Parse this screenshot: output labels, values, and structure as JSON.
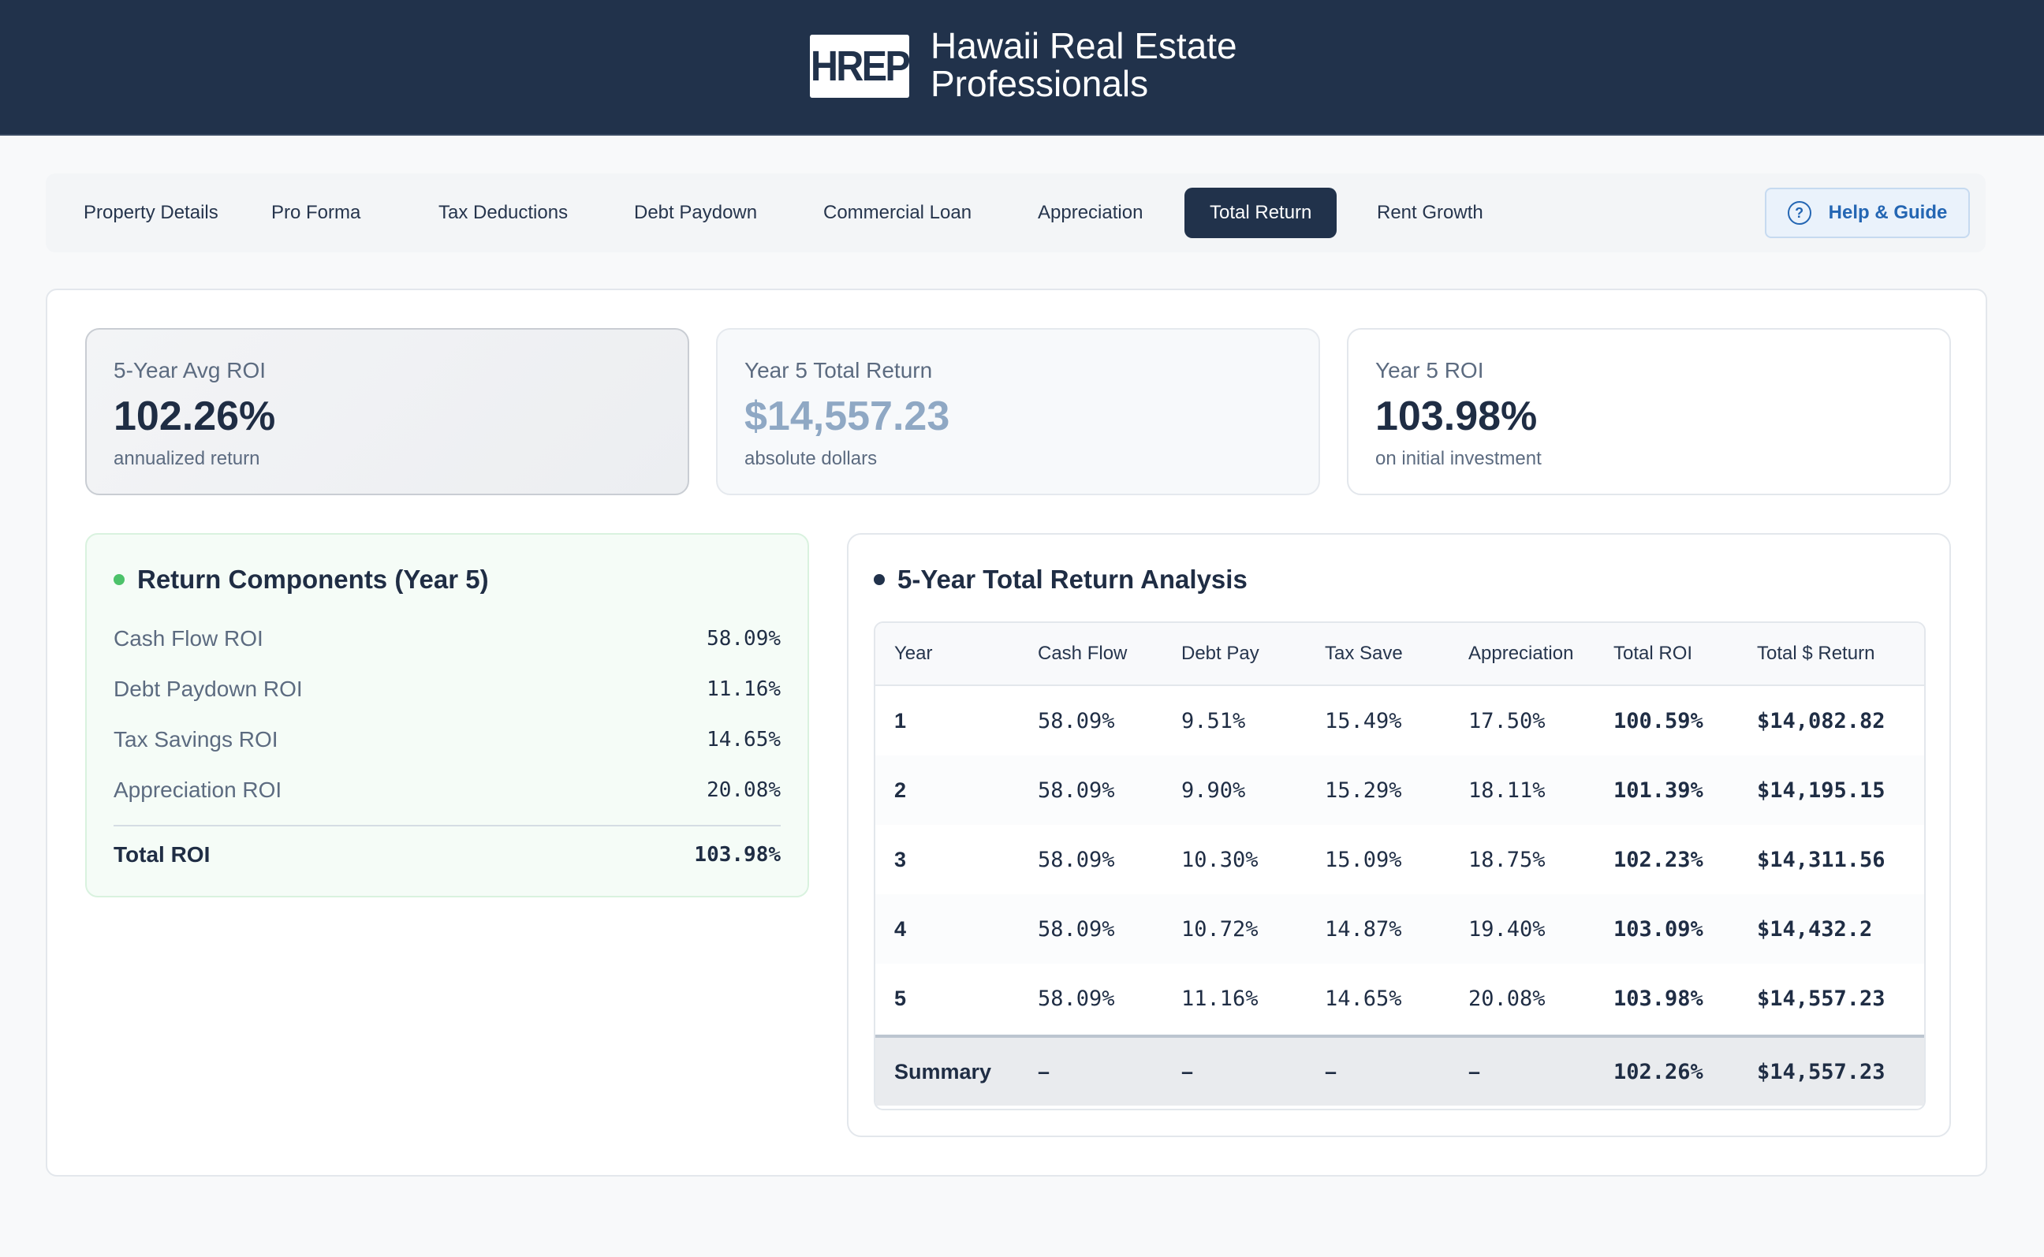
{
  "header": {
    "logo_text": "HREP",
    "brand_line1": "Hawaii Real Estate",
    "brand_line2": "Professionals"
  },
  "nav": {
    "tabs": [
      {
        "label": "Property Details",
        "active": false
      },
      {
        "label": "Pro Forma",
        "active": false
      },
      {
        "label": "Tax Deductions",
        "active": false
      },
      {
        "label": "Debt Paydown",
        "active": false
      },
      {
        "label": "Commercial Loan",
        "active": false
      },
      {
        "label": "Appreciation",
        "active": false
      },
      {
        "label": "Total Return",
        "active": true
      },
      {
        "label": "Rent Growth",
        "active": false
      }
    ],
    "help_label": "Help & Guide",
    "help_icon": "?"
  },
  "cards": [
    {
      "title": "5-Year Avg ROI",
      "value": "102.26%",
      "sub": "annualized return"
    },
    {
      "title": "Year 5 Total Return",
      "value": "$14,557.23",
      "sub": "absolute dollars"
    },
    {
      "title": "Year 5 ROI",
      "value": "103.98%",
      "sub": "on initial investment"
    }
  ],
  "components": {
    "title": "Return Components (Year 5)",
    "rows": [
      {
        "label": "Cash Flow ROI",
        "value": "58.09%"
      },
      {
        "label": "Debt Paydown ROI",
        "value": "11.16%"
      },
      {
        "label": "Tax Savings ROI",
        "value": "14.65%"
      },
      {
        "label": "Appreciation ROI",
        "value": "20.08%"
      }
    ],
    "total_label": "Total ROI",
    "total_value": "103.98%"
  },
  "analysis": {
    "title": "5-Year Total Return Analysis",
    "headers": [
      "Year",
      "Cash Flow",
      "Debt Pay",
      "Tax Save",
      "Appreciation",
      "Total ROI",
      "Total $ Return"
    ],
    "rows": [
      [
        "1",
        "58.09%",
        "9.51%",
        "15.49%",
        "17.50%",
        "100.59%",
        "$14,082.82"
      ],
      [
        "2",
        "58.09%",
        "9.90%",
        "15.29%",
        "18.11%",
        "101.39%",
        "$14,195.15"
      ],
      [
        "3",
        "58.09%",
        "10.30%",
        "15.09%",
        "18.75%",
        "102.23%",
        "$14,311.56"
      ],
      [
        "4",
        "58.09%",
        "10.72%",
        "14.87%",
        "19.40%",
        "103.09%",
        "$14,432.2"
      ],
      [
        "5",
        "58.09%",
        "11.16%",
        "14.65%",
        "20.08%",
        "103.98%",
        "$14,557.23"
      ]
    ],
    "summary": [
      "Summary",
      "–",
      "–",
      "–",
      "–",
      "102.26%",
      "$14,557.23"
    ]
  },
  "colors": {
    "header_bg": "#21324b",
    "accent_green": "#4cc26a",
    "accent_dark": "#21324b",
    "help_blue": "#2466b3"
  }
}
